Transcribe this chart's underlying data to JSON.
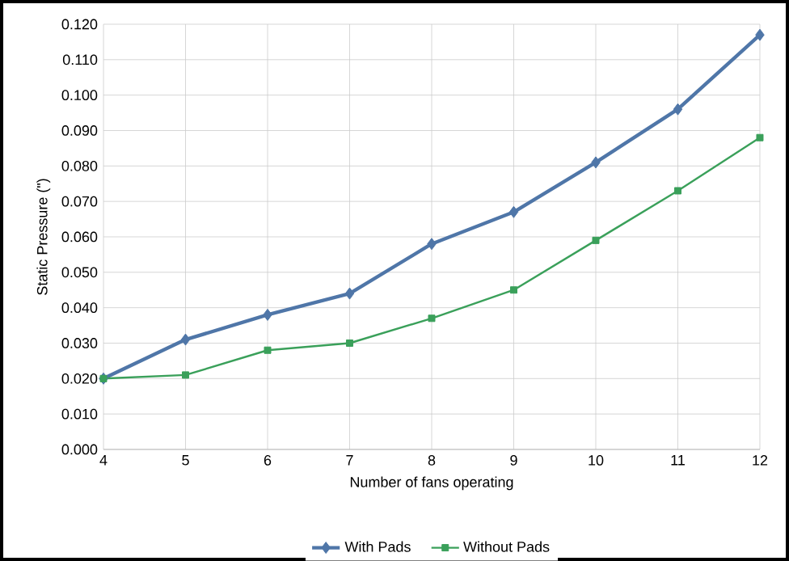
{
  "chart_data": {
    "type": "line",
    "xlabel": "Number of fans operating",
    "ylabel": "Static Pressure (\")",
    "x": [
      4,
      5,
      6,
      7,
      8,
      9,
      10,
      11,
      12
    ],
    "series": [
      {
        "name": "With Pads",
        "color": "#4f76a8",
        "marker": "diamond",
        "values": [
          0.02,
          0.031,
          0.038,
          0.044,
          0.058,
          0.067,
          0.081,
          0.096,
          0.117
        ]
      },
      {
        "name": "Without Pads",
        "color": "#3aa05a",
        "marker": "square",
        "values": [
          0.02,
          0.021,
          0.028,
          0.03,
          0.037,
          0.045,
          0.059,
          0.073,
          0.088
        ]
      }
    ],
    "xlim": [
      4,
      12
    ],
    "xticks": [
      4,
      5,
      6,
      7,
      8,
      9,
      10,
      11,
      12
    ],
    "ylim": [
      0,
      0.12
    ],
    "yticks": [
      {
        "value": 0,
        "label": "0.000"
      },
      {
        "value": 0.01,
        "label": "0.010"
      },
      {
        "value": 0.02,
        "label": "0.020"
      },
      {
        "value": 0.03,
        "label": "0.030"
      },
      {
        "value": 0.04,
        "label": "0.040"
      },
      {
        "value": 0.05,
        "label": "0.050"
      },
      {
        "value": 0.06,
        "label": "0.060"
      },
      {
        "value": 0.07,
        "label": "0.070"
      },
      {
        "value": 0.08,
        "label": "0.080"
      },
      {
        "value": 0.09,
        "label": "0.090"
      },
      {
        "value": 0.1,
        "label": "0.100"
      },
      {
        "value": 0.11,
        "label": "0.110"
      },
      {
        "value": 0.12,
        "label": "0.120"
      }
    ],
    "grid": true,
    "legend": "bottom",
    "line_style": "solid"
  }
}
